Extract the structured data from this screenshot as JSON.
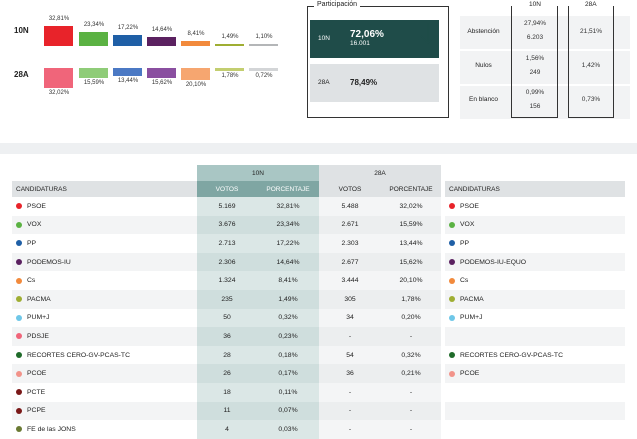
{
  "top_chart": {
    "rows": [
      {
        "label": "10N",
        "values": [
          "32,81%",
          "23,34%",
          "17,22%",
          "14,64%",
          "8,41%",
          "1,49%",
          "1,10%"
        ],
        "heights": [
          32.81,
          23.34,
          17.22,
          14.64,
          8.41,
          1.49,
          1.1
        ]
      },
      {
        "label": "28A",
        "values": [
          "32,02%",
          "15,59%",
          "13,44%",
          "15,62%",
          "20,10%",
          "1,78%",
          "0,72%"
        ],
        "heights": [
          32.02,
          15.59,
          13.44,
          15.62,
          20.1,
          1.78,
          0.72
        ]
      }
    ],
    "colors_10n": [
      "#e8232a",
      "#5bb243",
      "#1f5fa6",
      "#5b2160",
      "#f28a3c",
      "#9fae33",
      "#b4b6b8"
    ],
    "colors_28a": [
      "#f0657a",
      "#8fcc78",
      "#4b79c4",
      "#8a4fa0",
      "#f6a670",
      "#c3ce70",
      "#d3d5d7"
    ]
  },
  "participation": {
    "title": "Participación",
    "n10": {
      "label": "10N",
      "pct": "72,06%",
      "votes": "16.001"
    },
    "a28": {
      "label": "28A",
      "pct": "78,49%"
    },
    "arrow": "arrow-down-icon"
  },
  "abstention": {
    "col_10n": "10N",
    "col_28a": "28A",
    "rows": [
      {
        "label": "Abstención",
        "n10_pct": "27,94%",
        "n10_votes": "6.203",
        "a28": "21,51%"
      },
      {
        "label": "Nulos",
        "n10_pct": "1,56%",
        "n10_votes": "249",
        "a28": "1,42%"
      },
      {
        "label": "En blanco",
        "n10_pct": "0,99%",
        "n10_votes": "156",
        "a28": "0,73%"
      }
    ]
  },
  "table": {
    "group_10n": "10N",
    "group_28a": "28A",
    "col_candidaturas": "CANDIDATURAS",
    "col_votos": "VOTOS",
    "col_porcentaje": "PORCENTAJE",
    "col_candidaturas_right": "CANDIDATURAS",
    "rows": [
      {
        "name": "PSOE",
        "color": "#e8232a",
        "v10": "5.169",
        "p10": "32,81%",
        "v28": "5.488",
        "p28": "32,02%",
        "name28": "PSOE",
        "color28": "#e8232a"
      },
      {
        "name": "VOX",
        "color": "#5bb243",
        "v10": "3.676",
        "p10": "23,34%",
        "v28": "2.671",
        "p28": "15,59%",
        "name28": "VOX",
        "color28": "#5bb243"
      },
      {
        "name": "PP",
        "color": "#1f5fa6",
        "v10": "2.713",
        "p10": "17,22%",
        "v28": "2.303",
        "p28": "13,44%",
        "name28": "PP",
        "color28": "#1f5fa6"
      },
      {
        "name": "PODEMOS-IU",
        "color": "#5b2160",
        "v10": "2.306",
        "p10": "14,64%",
        "v28": "2.677",
        "p28": "15,62%",
        "name28": "PODEMOS-IU-EQUO",
        "color28": "#5b2160"
      },
      {
        "name": "Cs",
        "color": "#f28a3c",
        "v10": "1.324",
        "p10": "8,41%",
        "v28": "3.444",
        "p28": "20,10%",
        "name28": "Cs",
        "color28": "#f28a3c"
      },
      {
        "name": "PACMA",
        "color": "#9fae33",
        "v10": "235",
        "p10": "1,49%",
        "v28": "305",
        "p28": "1,78%",
        "name28": "PACMA",
        "color28": "#9fae33"
      },
      {
        "name": "PUM+J",
        "color": "#6fc7e8",
        "v10": "50",
        "p10": "0,32%",
        "v28": "34",
        "p28": "0,20%",
        "name28": "PUM+J",
        "color28": "#6fc7e8"
      },
      {
        "name": "PDSJE",
        "color": "#f0657a",
        "v10": "36",
        "p10": "0,23%",
        "v28": "-",
        "p28": "-",
        "name28": "",
        "color28": ""
      },
      {
        "name": "RECORTES CERO-GV-PCAS-TC",
        "color": "#1f6b2a",
        "v10": "28",
        "p10": "0,18%",
        "v28": "54",
        "p28": "0,32%",
        "name28": "RECORTES CERO-GV-PCAS-TC",
        "color28": "#1f6b2a"
      },
      {
        "name": "PCOE",
        "color": "#f2938a",
        "v10": "26",
        "p10": "0,17%",
        "v28": "36",
        "p28": "0,21%",
        "name28": "PCOE",
        "color28": "#f2938a"
      },
      {
        "name": "PCTE",
        "color": "#7a1818",
        "v10": "18",
        "p10": "0,11%",
        "v28": "-",
        "p28": "-",
        "name28": "",
        "color28": ""
      },
      {
        "name": "PCPE",
        "color": "#7a1818",
        "v10": "11",
        "p10": "0,07%",
        "v28": "-",
        "p28": "-",
        "name28": "",
        "color28": ""
      },
      {
        "name": "FE de las JONS",
        "color": "#6a7a33",
        "v10": "4",
        "p10": "0,03%",
        "v28": "-",
        "p28": "-",
        "name28": "",
        "color28": ""
      }
    ]
  }
}
